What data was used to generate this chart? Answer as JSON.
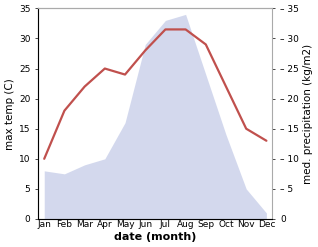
{
  "months": [
    "Jan",
    "Feb",
    "Mar",
    "Apr",
    "May",
    "Jun",
    "Jul",
    "Aug",
    "Sep",
    "Oct",
    "Nov",
    "Dec"
  ],
  "temperature": [
    10,
    18,
    22,
    25,
    24,
    28,
    31.5,
    31.5,
    29,
    22,
    15,
    13
  ],
  "precipitation": [
    8,
    7.5,
    9,
    10,
    16,
    29,
    33,
    34,
    24,
    14,
    5,
    1
  ],
  "temp_color": "#c0504d",
  "precip_fill_color": "#c5cce8",
  "ylim": [
    0,
    35
  ],
  "yticks": [
    0,
    5,
    10,
    15,
    20,
    25,
    30,
    35
  ],
  "xlabel": "date (month)",
  "ylabel_left": "max temp (C)",
  "ylabel_right": "med. precipitation (kg/m2)",
  "bg_color": "#ffffff",
  "temp_linewidth": 1.6,
  "precip_alpha": 0.75,
  "spine_color": "#aaaaaa",
  "tick_label_size": 6.5,
  "axis_label_size": 7.5
}
